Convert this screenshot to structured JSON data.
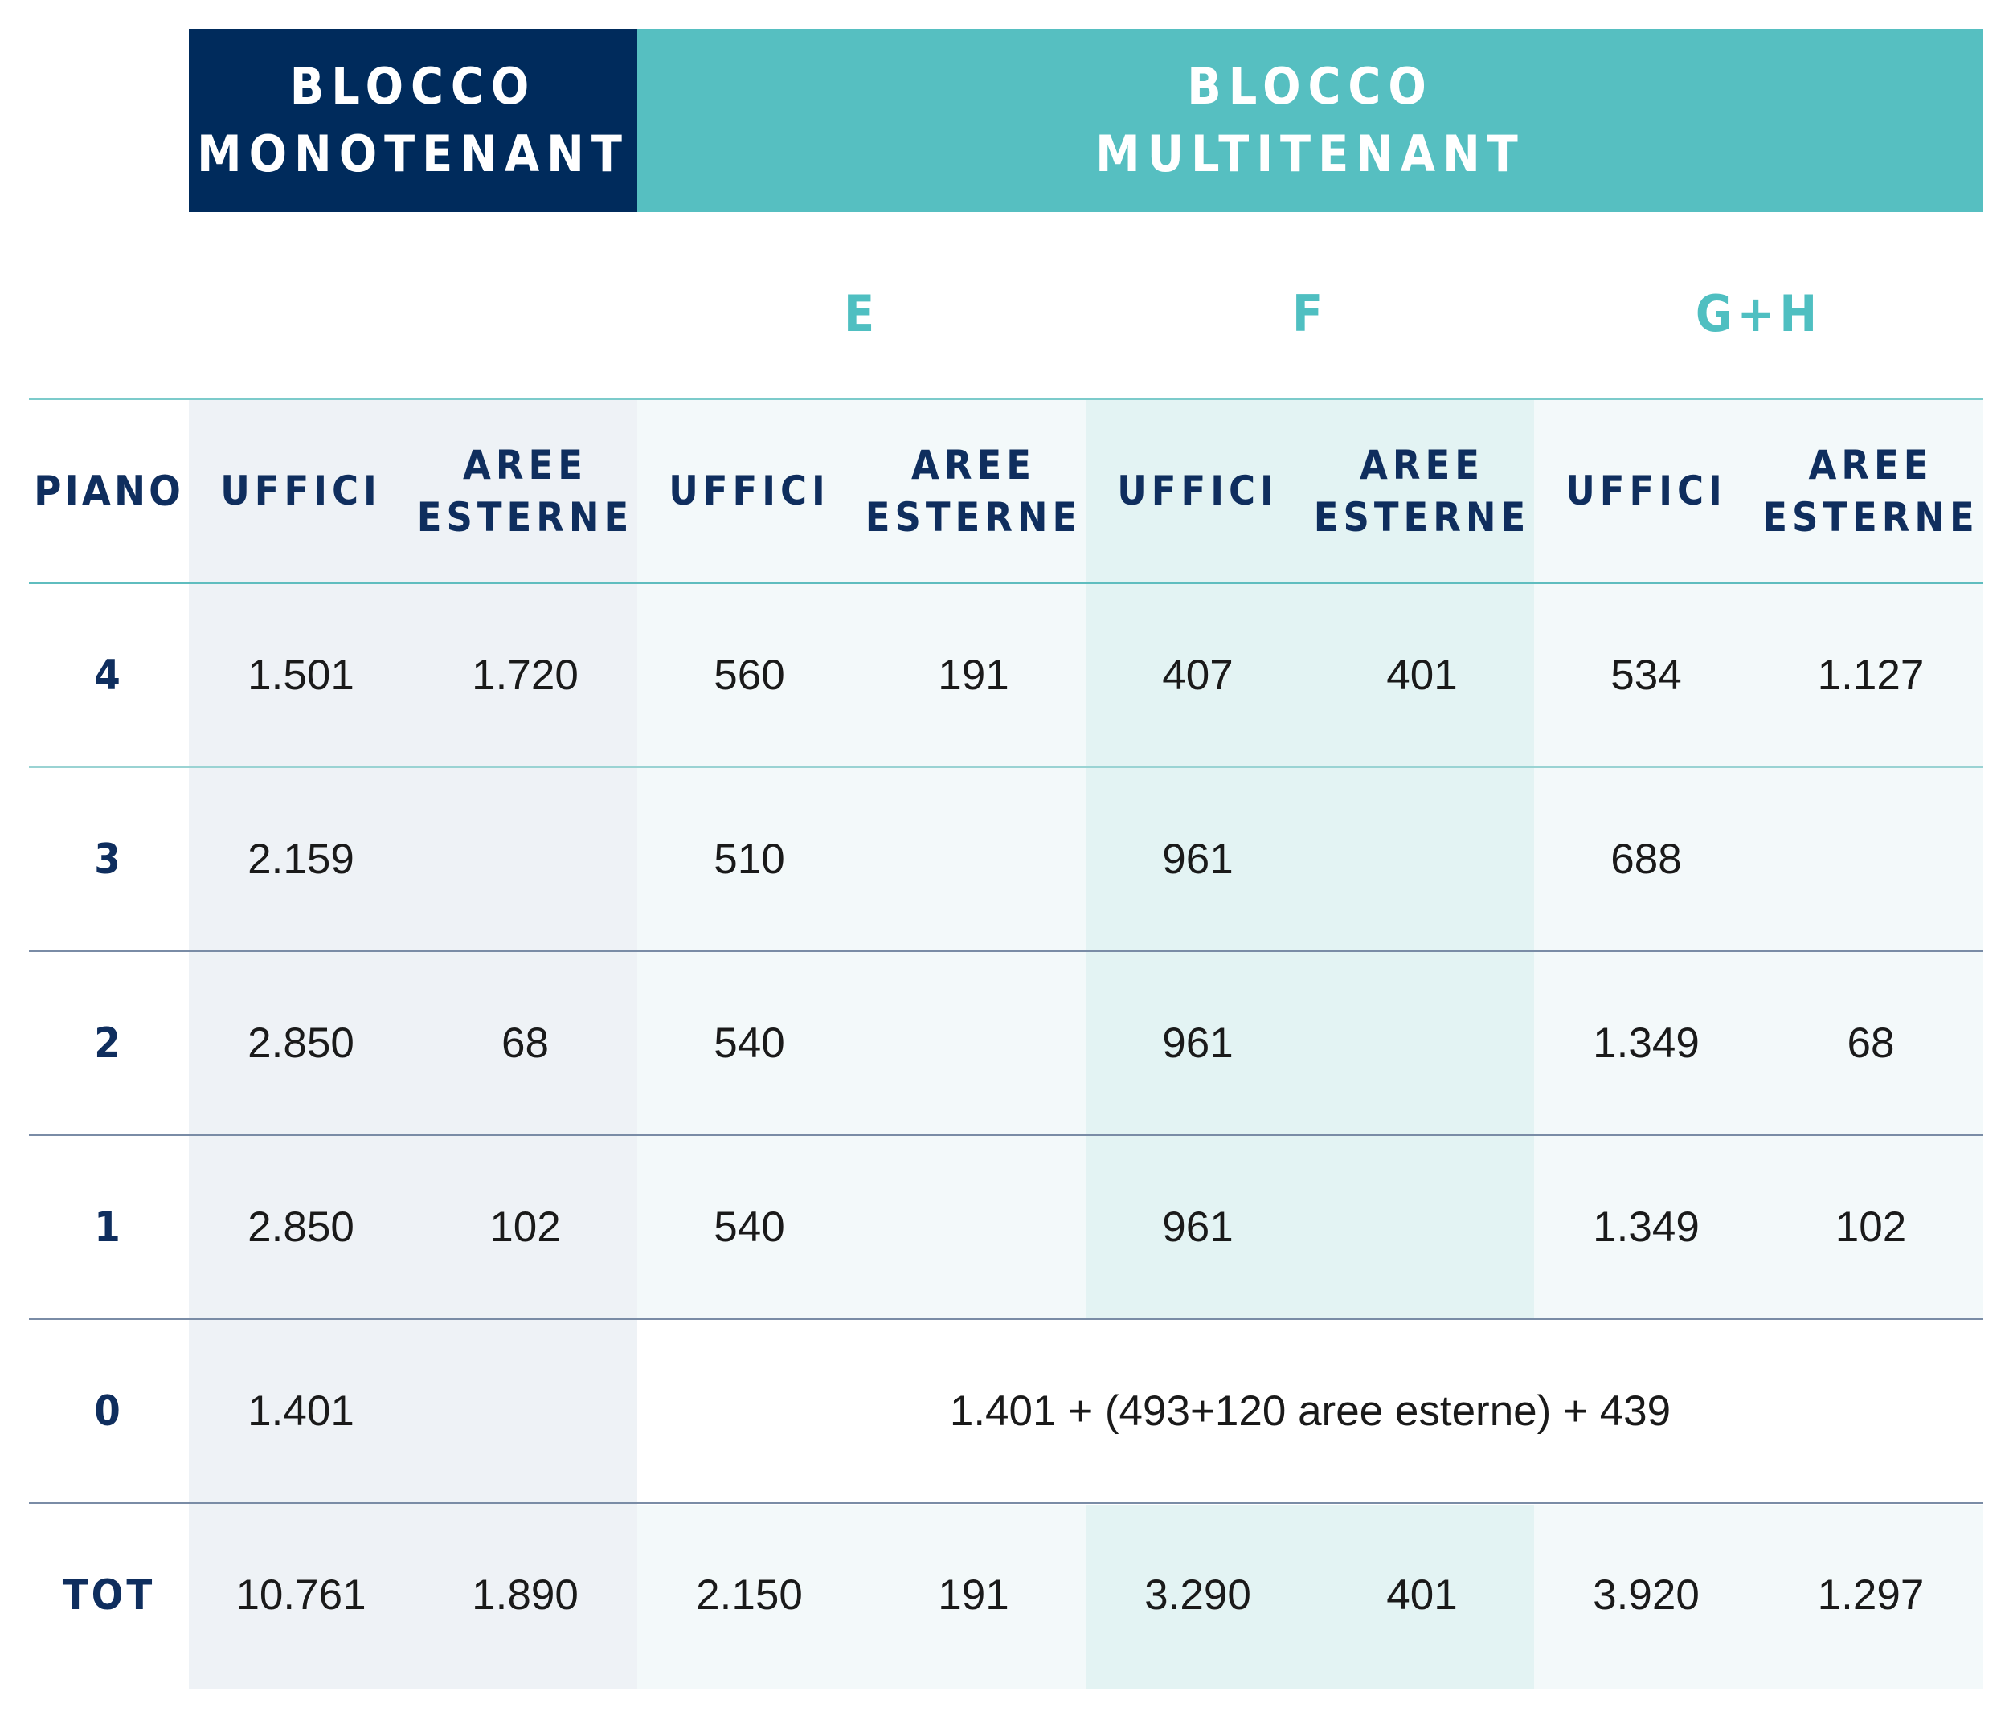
{
  "chart_data": {
    "type": "table",
    "groups": [
      {
        "lines": [
          "BLOCCO",
          "MONOTENANT"
        ],
        "color": "#002B5C"
      },
      {
        "lines": [
          "BLOCCO",
          "MULTITENANT"
        ],
        "color": "#56BFC1"
      }
    ],
    "subgroups": [
      "E",
      "F",
      "G+H"
    ],
    "row_header_label": "PIANO",
    "column_headers": [
      [
        "UFFICI"
      ],
      [
        "AREE",
        "ESTERNE"
      ],
      [
        "UFFICI"
      ],
      [
        "AREE",
        "ESTERNE"
      ],
      [
        "UFFICI"
      ],
      [
        "AREE",
        "ESTERNE"
      ],
      [
        "UFFICI"
      ],
      [
        "AREE",
        "ESTERNE"
      ]
    ],
    "rows": [
      {
        "piano": "4",
        "values": [
          "1.501",
          "1.720",
          "560",
          "191",
          "407",
          "401",
          "534",
          "1.127"
        ]
      },
      {
        "piano": "3",
        "values": [
          "2.159",
          "",
          "510",
          "",
          "961",
          "",
          "688",
          ""
        ]
      },
      {
        "piano": "2",
        "values": [
          "2.850",
          "68",
          "540",
          "",
          "961",
          "",
          "1.349",
          "68"
        ]
      },
      {
        "piano": "1",
        "values": [
          "2.850",
          "102",
          "540",
          "",
          "961",
          "",
          "1.349",
          "102"
        ]
      },
      {
        "piano": "0",
        "values": [
          "1.401",
          ""
        ],
        "merged_value": "1.401 + (493+120 aree esterne) + 439"
      },
      {
        "piano": "TOT",
        "values": [
          "10.761",
          "1.890",
          "2.150",
          "191",
          "3.290",
          "401",
          "3.920",
          "1.297"
        ]
      }
    ],
    "colors": {
      "navy": "#002B5C",
      "teal": "#56BFC1",
      "header_text": "#0F2E5E"
    }
  }
}
